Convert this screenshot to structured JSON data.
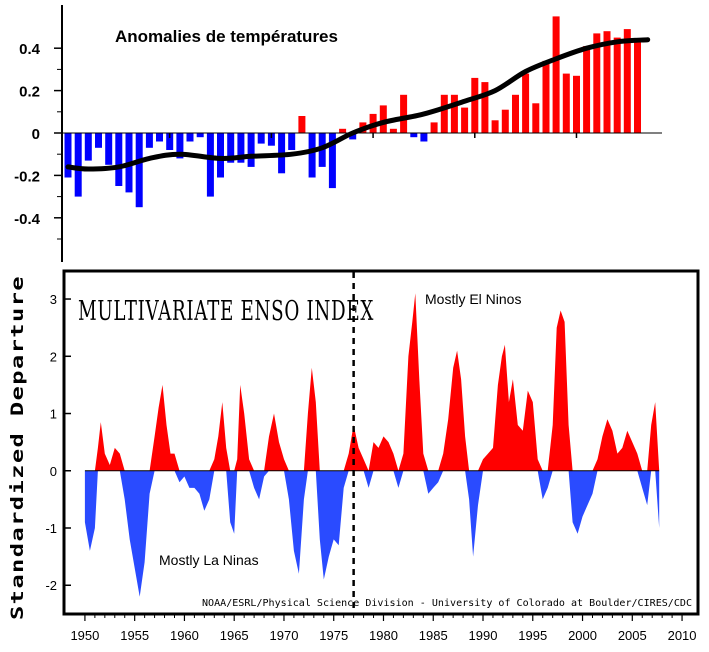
{
  "chart_data": [
    {
      "type": "bar",
      "title": "Anomalies de températures",
      "ytick_labels": [
        "0.4",
        "0.2",
        "0",
        "-0.2",
        "-0.4"
      ],
      "ytick_values": [
        0.4,
        0.2,
        0,
        -0.2,
        -0.4
      ],
      "ylim": [
        -0.6,
        0.6
      ],
      "xlim": [
        1950,
        2009
      ],
      "colors": {
        "positive": "#ff0000",
        "negative": "#0000ff",
        "trend": "#000000"
      },
      "series": [
        {
          "values": [
            {
              "x": 1950,
              "y": -0.21
            },
            {
              "x": 1951,
              "y": -0.3
            },
            {
              "x": 1952,
              "y": -0.13
            },
            {
              "x": 1953,
              "y": -0.07
            },
            {
              "x": 1954,
              "y": -0.15
            },
            {
              "x": 1955,
              "y": -0.25
            },
            {
              "x": 1956,
              "y": -0.28
            },
            {
              "x": 1957,
              "y": -0.35
            },
            {
              "x": 1958,
              "y": -0.07
            },
            {
              "x": 1959,
              "y": -0.04
            },
            {
              "x": 1960,
              "y": -0.08
            },
            {
              "x": 1961,
              "y": -0.12
            },
            {
              "x": 1962,
              "y": -0.04
            },
            {
              "x": 1963,
              "y": -0.02
            },
            {
              "x": 1964,
              "y": -0.3
            },
            {
              "x": 1965,
              "y": -0.21
            },
            {
              "x": 1966,
              "y": -0.14
            },
            {
              "x": 1967,
              "y": -0.14
            },
            {
              "x": 1968,
              "y": -0.16
            },
            {
              "x": 1969,
              "y": -0.05
            },
            {
              "x": 1970,
              "y": -0.06
            },
            {
              "x": 1971,
              "y": -0.19
            },
            {
              "x": 1972,
              "y": -0.08
            },
            {
              "x": 1973,
              "y": 0.08
            },
            {
              "x": 1974,
              "y": -0.21
            },
            {
              "x": 1975,
              "y": -0.16
            },
            {
              "x": 1976,
              "y": -0.26
            },
            {
              "x": 1977,
              "y": 0.02
            },
            {
              "x": 1978,
              "y": -0.03
            },
            {
              "x": 1979,
              "y": 0.05
            },
            {
              "x": 1980,
              "y": 0.09
            },
            {
              "x": 1981,
              "y": 0.13
            },
            {
              "x": 1982,
              "y": 0.02
            },
            {
              "x": 1983,
              "y": 0.18
            },
            {
              "x": 1984,
              "y": -0.02
            },
            {
              "x": 1985,
              "y": -0.04
            },
            {
              "x": 1986,
              "y": 0.05
            },
            {
              "x": 1987,
              "y": 0.18
            },
            {
              "x": 1988,
              "y": 0.18
            },
            {
              "x": 1989,
              "y": 0.12
            },
            {
              "x": 1990,
              "y": 0.26
            },
            {
              "x": 1991,
              "y": 0.24
            },
            {
              "x": 1992,
              "y": 0.06
            },
            {
              "x": 1993,
              "y": 0.11
            },
            {
              "x": 1994,
              "y": 0.18
            },
            {
              "x": 1995,
              "y": 0.28
            },
            {
              "x": 1996,
              "y": 0.14
            },
            {
              "x": 1997,
              "y": 0.34
            },
            {
              "x": 1998,
              "y": 0.55
            },
            {
              "x": 1999,
              "y": 0.28
            },
            {
              "x": 2000,
              "y": 0.27
            },
            {
              "x": 2001,
              "y": 0.41
            },
            {
              "x": 2002,
              "y": 0.47
            },
            {
              "x": 2003,
              "y": 0.48
            },
            {
              "x": 2004,
              "y": 0.45
            },
            {
              "x": 2005,
              "y": 0.49
            },
            {
              "x": 2006,
              "y": 0.44
            }
          ]
        },
        {
          "type": "line",
          "values": [
            {
              "x": 1950,
              "y": -0.16
            },
            {
              "x": 1952,
              "y": -0.17
            },
            {
              "x": 1955,
              "y": -0.16
            },
            {
              "x": 1958,
              "y": -0.12
            },
            {
              "x": 1961,
              "y": -0.1
            },
            {
              "x": 1965,
              "y": -0.12
            },
            {
              "x": 1968,
              "y": -0.11
            },
            {
              "x": 1972,
              "y": -0.1
            },
            {
              "x": 1975,
              "y": -0.07
            },
            {
              "x": 1978,
              "y": 0.0
            },
            {
              "x": 1981,
              "y": 0.05
            },
            {
              "x": 1985,
              "y": 0.09
            },
            {
              "x": 1989,
              "y": 0.15
            },
            {
              "x": 1992,
              "y": 0.2
            },
            {
              "x": 1995,
              "y": 0.29
            },
            {
              "x": 1998,
              "y": 0.35
            },
            {
              "x": 2001,
              "y": 0.4
            },
            {
              "x": 2004,
              "y": 0.43
            },
            {
              "x": 2007,
              "y": 0.44
            }
          ]
        }
      ]
    },
    {
      "type": "area",
      "title": "MULTIVARIATE ENSO INDEX",
      "ylabel": "Standardized Departure",
      "ytick_labels": [
        "3",
        "2",
        "1",
        "0",
        "-1",
        "-2"
      ],
      "ytick_values": [
        3,
        2,
        1,
        0,
        -1,
        -2
      ],
      "ylim": [
        -2.45,
        3.35
      ],
      "xtick_labels": [
        "1950",
        "1955",
        "1960",
        "1965",
        "1970",
        "1975",
        "1980",
        "1985",
        "1990",
        "1995",
        "2000",
        "2005",
        "2010"
      ],
      "xtick_values": [
        1950,
        1955,
        1960,
        1965,
        1970,
        1975,
        1980,
        1985,
        1990,
        1995,
        2000,
        2005,
        2010
      ],
      "xlim": [
        1948.3,
        2011.2
      ],
      "divider_year": 1977,
      "annotations": [
        "Mostly El Ninos",
        "Mostly La Ninas"
      ],
      "credit": "NOAA/ESRL/Physical Science Division - University of Colorado at Boulder/CIRES/CDC",
      "colors": {
        "positive": "#ff0000",
        "negative": "#2a4bff"
      },
      "x": [
        1950.0,
        1950.5,
        1951.0,
        1951.3,
        1951.6,
        1952.0,
        1952.5,
        1953.0,
        1953.5,
        1954.0,
        1954.5,
        1955.0,
        1955.5,
        1956.0,
        1956.5,
        1957.0,
        1957.4,
        1957.8,
        1958.2,
        1958.6,
        1959.0,
        1959.5,
        1960.0,
        1960.5,
        1961.0,
        1961.5,
        1962.0,
        1962.5,
        1963.0,
        1963.4,
        1963.8,
        1964.2,
        1964.6,
        1965.0,
        1965.3,
        1965.6,
        1966.0,
        1966.5,
        1967.0,
        1967.5,
        1968.0,
        1968.5,
        1969.0,
        1969.5,
        1970.0,
        1970.5,
        1971.0,
        1971.5,
        1972.0,
        1972.4,
        1972.8,
        1973.2,
        1973.6,
        1974.0,
        1974.5,
        1975.0,
        1975.5,
        1976.0,
        1976.5,
        1977.0,
        1977.5,
        1978.0,
        1978.5,
        1979.0,
        1979.5,
        1980.0,
        1980.5,
        1981.0,
        1981.5,
        1982.0,
        1982.5,
        1982.9,
        1983.2,
        1983.6,
        1984.0,
        1984.5,
        1985.0,
        1985.5,
        1986.0,
        1986.5,
        1987.0,
        1987.4,
        1987.8,
        1988.2,
        1988.6,
        1989.0,
        1989.5,
        1990.0,
        1990.5,
        1991.0,
        1991.5,
        1991.9,
        1992.2,
        1992.6,
        1993.0,
        1993.5,
        1994.0,
        1994.5,
        1995.0,
        1995.5,
        1996.0,
        1996.5,
        1997.0,
        1997.4,
        1997.8,
        1998.2,
        1998.6,
        1999.0,
        1999.5,
        2000.0,
        2000.5,
        2001.0,
        2001.5,
        2002.0,
        2002.5,
        2003.0,
        2003.5,
        2004.0,
        2004.5,
        2005.0,
        2005.5,
        2006.0,
        2006.5,
        2006.9,
        2007.3,
        2007.7
      ],
      "values": [
        -0.9,
        -1.4,
        -1.0,
        0.4,
        0.85,
        0.3,
        0.1,
        0.4,
        0.3,
        -0.5,
        -1.2,
        -1.7,
        -2.2,
        -1.6,
        -0.4,
        0.6,
        1.1,
        1.5,
        0.8,
        0.3,
        0.3,
        -0.2,
        -0.1,
        -0.3,
        -0.3,
        -0.4,
        -0.7,
        -0.5,
        0.2,
        0.6,
        1.2,
        0.4,
        -0.9,
        -1.1,
        0.2,
        1.5,
        1.0,
        0.2,
        -0.3,
        -0.5,
        -0.1,
        0.6,
        1.0,
        0.5,
        0.2,
        -0.5,
        -1.4,
        -1.8,
        -0.5,
        1.0,
        1.8,
        1.2,
        -1.2,
        -1.9,
        -1.5,
        -1.2,
        -1.3,
        -0.3,
        0.3,
        0.8,
        0.4,
        0.2,
        -0.3,
        0.5,
        0.4,
        0.6,
        0.5,
        0.3,
        -0.3,
        0.3,
        2.0,
        2.6,
        3.1,
        1.6,
        0.3,
        -0.4,
        -0.3,
        -0.2,
        0.3,
        0.9,
        1.8,
        2.1,
        1.6,
        0.6,
        -0.5,
        -1.5,
        -0.6,
        0.2,
        0.3,
        0.4,
        1.5,
        2.0,
        2.2,
        1.2,
        1.6,
        0.8,
        0.7,
        1.4,
        1.2,
        0.2,
        -0.5,
        -0.3,
        0.8,
        2.5,
        2.8,
        2.6,
        0.8,
        -0.9,
        -1.1,
        -0.8,
        -0.6,
        -0.4,
        0.2,
        0.6,
        0.9,
        0.7,
        0.3,
        0.4,
        0.7,
        0.5,
        0.3,
        -0.3,
        -0.6,
        0.8,
        1.2,
        -1.0
      ]
    }
  ]
}
